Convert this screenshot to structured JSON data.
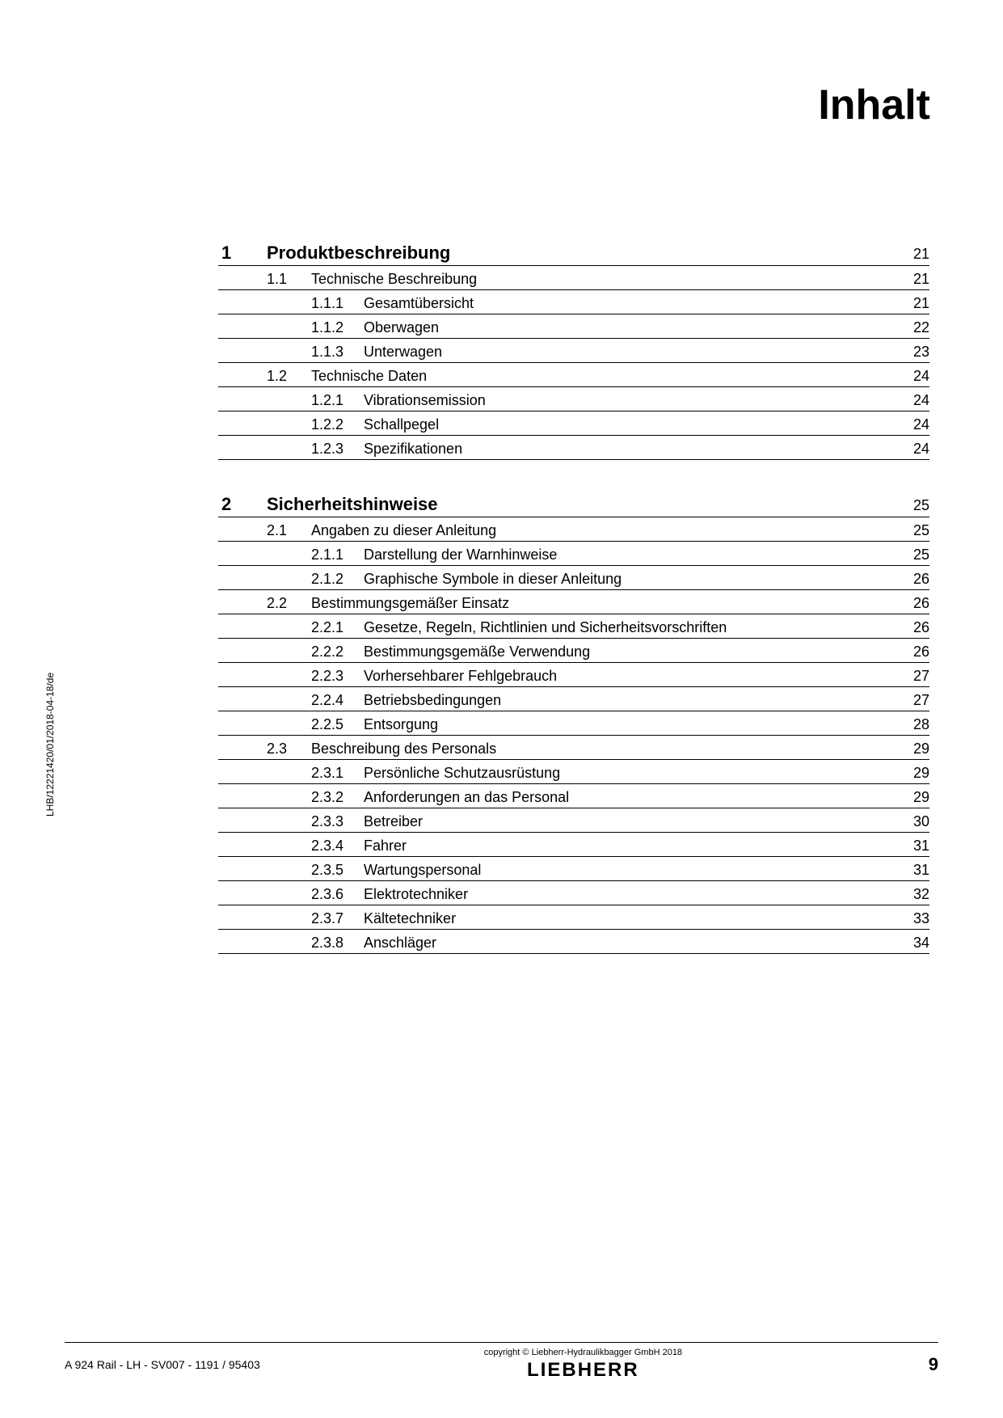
{
  "title": "Inhalt",
  "vertical_ref": "LHB/12221420/01/2018-04-18/de",
  "sections": [
    {
      "num": "1",
      "title": "Produktbeschreibung",
      "page": "21",
      "subs": [
        {
          "num": "1.1",
          "title": "Technische Beschreibung",
          "page": "21",
          "items": [
            {
              "num": "1.1.1",
              "title": "Gesamtübersicht",
              "page": "21"
            },
            {
              "num": "1.1.2",
              "title": "Oberwagen",
              "page": "22"
            },
            {
              "num": "1.1.3",
              "title": "Unterwagen",
              "page": "23"
            }
          ]
        },
        {
          "num": "1.2",
          "title": "Technische Daten",
          "page": "24",
          "items": [
            {
              "num": "1.2.1",
              "title": "Vibrationsemission",
              "page": "24"
            },
            {
              "num": "1.2.2",
              "title": "Schallpegel",
              "page": "24"
            },
            {
              "num": "1.2.3",
              "title": "Spezifikationen",
              "page": "24"
            }
          ]
        }
      ]
    },
    {
      "num": "2",
      "title": "Sicherheitshinweise",
      "page": "25",
      "subs": [
        {
          "num": "2.1",
          "title": "Angaben zu dieser Anleitung",
          "page": "25",
          "items": [
            {
              "num": "2.1.1",
              "title": "Darstellung der Warnhinweise",
              "page": "25"
            },
            {
              "num": "2.1.2",
              "title": "Graphische Symbole in dieser Anleitung",
              "page": "26"
            }
          ]
        },
        {
          "num": "2.2",
          "title": "Bestimmungsgemäßer Einsatz",
          "page": "26",
          "items": [
            {
              "num": "2.2.1",
              "title": "Gesetze, Regeln, Richtlinien und Sicherheitsvorschriften",
              "page": "26"
            },
            {
              "num": "2.2.2",
              "title": "Bestimmungsgemäße Verwendung",
              "page": "26"
            },
            {
              "num": "2.2.3",
              "title": "Vorhersehbarer Fehlgebrauch",
              "page": "27"
            },
            {
              "num": "2.2.4",
              "title": "Betriebsbedingungen",
              "page": "27"
            },
            {
              "num": "2.2.5",
              "title": "Entsorgung",
              "page": "28"
            }
          ]
        },
        {
          "num": "2.3",
          "title": "Beschreibung des Personals",
          "page": "29",
          "items": [
            {
              "num": "2.3.1",
              "title": "Persönliche Schutzausrüstung",
              "page": "29"
            },
            {
              "num": "2.3.2",
              "title": "Anforderungen an das Personal",
              "page": "29"
            },
            {
              "num": "2.3.3",
              "title": "Betreiber",
              "page": "30"
            },
            {
              "num": "2.3.4",
              "title": "Fahrer",
              "page": "31"
            },
            {
              "num": "2.3.5",
              "title": "Wartungspersonal",
              "page": "31"
            },
            {
              "num": "2.3.6",
              "title": "Elektrotechniker",
              "page": "32"
            },
            {
              "num": "2.3.7",
              "title": "Kältetechniker",
              "page": "33"
            },
            {
              "num": "2.3.8",
              "title": "Anschläger",
              "page": "34"
            }
          ]
        }
      ]
    }
  ],
  "footer": {
    "copyright": "copyright © Liebherr-Hydraulikbagger GmbH 2018",
    "logo": "LIEBHERR",
    "left": "A 924 Rail - LH - SV007  - 1191 / 95403",
    "page": "9"
  }
}
